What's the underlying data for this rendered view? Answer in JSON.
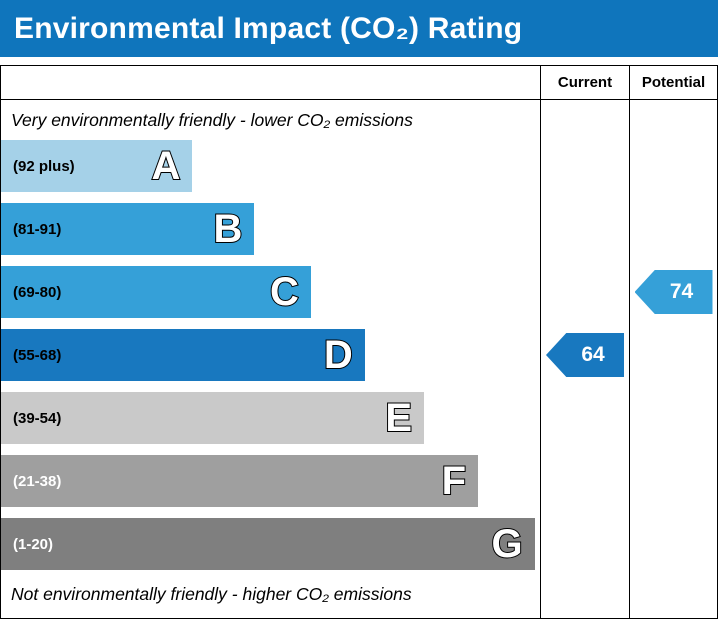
{
  "title": "Environmental Impact (CO₂) Rating",
  "header": {
    "current": "Current",
    "potential": "Potential"
  },
  "colors": {
    "title_bg": "#0f75bc",
    "title_fg": "#ffffff",
    "border": "#000000"
  },
  "chart_data": {
    "type": "bar",
    "title": "Environmental Impact (CO₂) Rating",
    "top_note": "Very environmentally friendly - lower CO₂ emissions",
    "bottom_note": "Not environmentally friendly - higher CO₂ emissions",
    "columns": [
      "Current",
      "Potential"
    ],
    "bands": [
      {
        "letter": "A",
        "range": "(92 plus)",
        "color": "#a5d1e8",
        "label_color": "#000000",
        "width_pct": 35.5
      },
      {
        "letter": "B",
        "range": "(81-91)",
        "color": "#35a0d8",
        "label_color": "#000000",
        "width_pct": 47
      },
      {
        "letter": "C",
        "range": "(69-80)",
        "color": "#35a0d8",
        "label_color": "#000000",
        "width_pct": 57.5
      },
      {
        "letter": "D",
        "range": "(55-68)",
        "color": "#1878bf",
        "label_color": "#000000",
        "width_pct": 67.5
      },
      {
        "letter": "E",
        "range": "(39-54)",
        "color": "#c9c9c9",
        "label_color": "#000000",
        "width_pct": 78.5
      },
      {
        "letter": "F",
        "range": "(21-38)",
        "color": "#9f9f9f",
        "label_color": "#ffffff",
        "width_pct": 88.5
      },
      {
        "letter": "G",
        "range": "(1-20)",
        "color": "#7f7f7f",
        "label_color": "#ffffff",
        "width_pct": 99
      }
    ],
    "current": {
      "value": 64,
      "band": "D",
      "color": "#1878bf"
    },
    "potential": {
      "value": 74,
      "band": "C",
      "color": "#35a0d8"
    }
  }
}
